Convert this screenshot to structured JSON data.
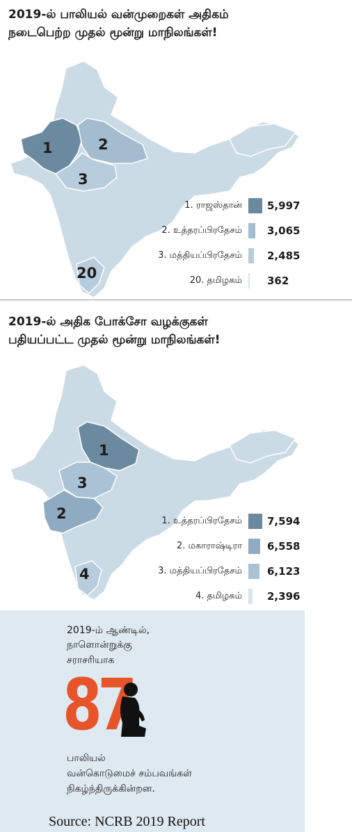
{
  "panel1": {
    "title_line1": "2019-ல் பாலியல் வன்முறைகள் அதிகம்",
    "title_line2": "நடைபெற்ற முதல் மூன்று மாநிலங்கள்!",
    "map_labels": [
      "1",
      "2",
      "3",
      "20"
    ]
  },
  "panel2": {
    "title_line1": "2019-ல் அதிக போக்சோ வழக்குகள்",
    "title_line2": "பதியப்பட்ட முதல் மூன்று மாநிலங்கள்!",
    "map_labels": [
      "1",
      "3",
      "2",
      "4"
    ]
  },
  "chart_data": [
    {
      "type": "bar",
      "title": "2019-ல் பாலியல் வன்முறைகள் அதிகம் நடைபெற்ற முதல் மூன்று மாநிலங்கள்!",
      "categories": [
        "1. ராஜஸ்தான்",
        "2. உத்தரப்பிரதேசம்",
        "3. மத்தியப்பிரதேசம்",
        "20. தமிழகம்"
      ],
      "values": [
        5997,
        3065,
        2485,
        362
      ],
      "value_labels": [
        "5,997",
        "3,065",
        "2,485",
        "362"
      ],
      "colors": [
        "#6b8aa0",
        "#a3bccf",
        "#b7cddd",
        "#d9e4ec"
      ]
    },
    {
      "type": "bar",
      "title": "2019-ல் அதிக போக்சோ வழக்குகள் பதியப்பட்ட முதல் மூன்று மாநிலங்கள்!",
      "categories": [
        "1. உத்தரப்பிரதேசம்",
        "2. மகாராஷ்டிரா",
        "3. மத்தியப்பிரதேசம்",
        "4. தமிழகம்"
      ],
      "values": [
        7594,
        6558,
        6123,
        2396
      ],
      "value_labels": [
        "7,594",
        "6,558",
        "6,123",
        "2,396"
      ],
      "colors": [
        "#6b8aa0",
        "#8fabc1",
        "#a9c2d5",
        "#d9e4ec"
      ]
    }
  ],
  "stat": {
    "line1": "2019-ம் ஆண்டில்,",
    "line2": "நாளொன்றுக்கு",
    "line3": "சராசரியாக",
    "number": "87",
    "line4": "பாலியல்",
    "line5": "வன்கொடுமைச் சம்பவங்கள்",
    "line6": "நிகழ்ந்திருக்கின்றன.",
    "number_color": "#e8542a"
  },
  "source": "Source: NCRB 2019 Report"
}
